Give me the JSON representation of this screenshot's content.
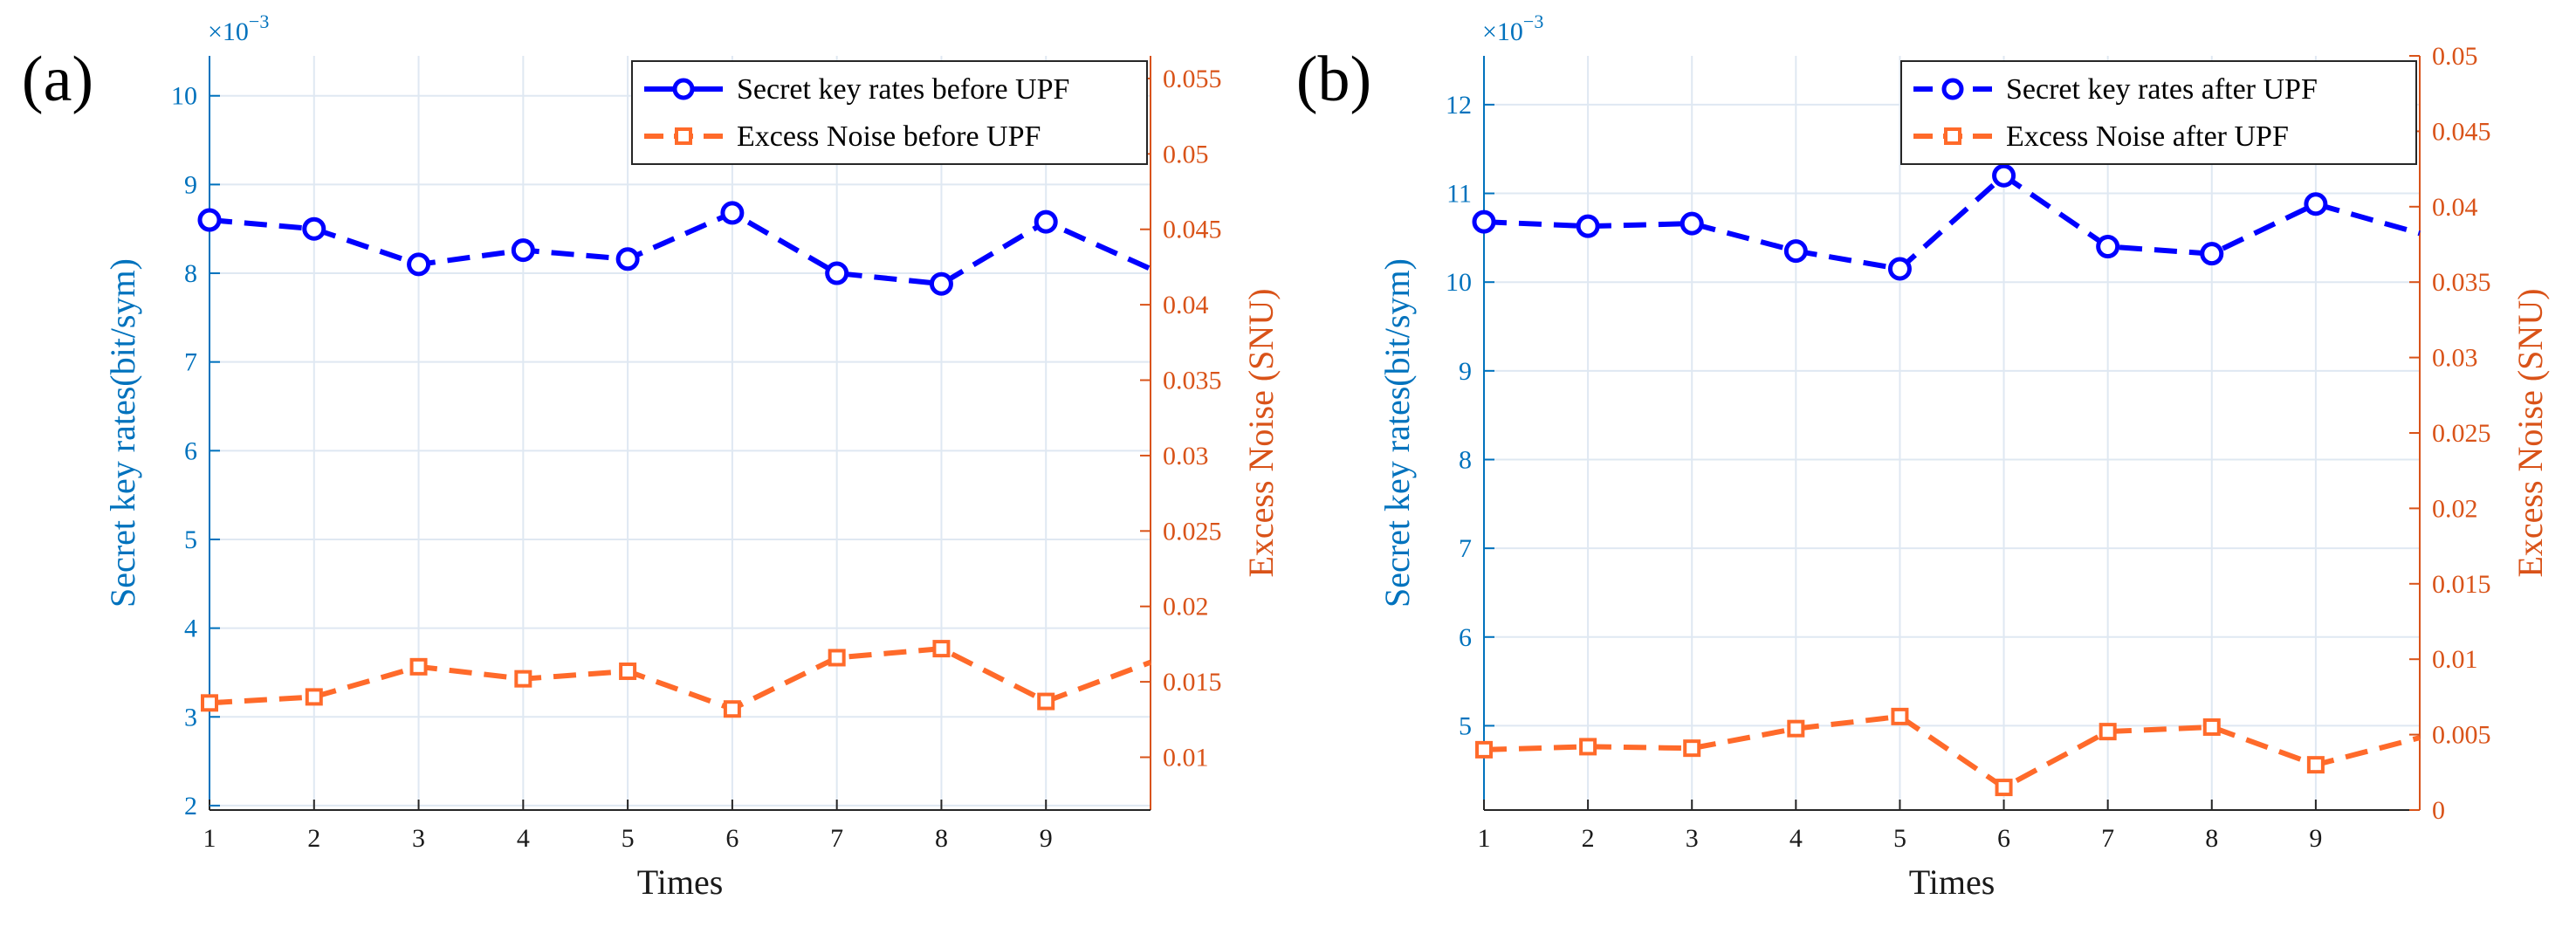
{
  "colors": {
    "left_axis": "#0072BD",
    "right_axis": "#D95319",
    "series_blue": "#0000FF",
    "series_orange": "#FF6A2A",
    "grid": "#DFE8F2",
    "text": "#1A1A1A"
  },
  "chart_data": [
    {
      "type": "line",
      "panel_label": "(a)",
      "xlabel": "Times",
      "ylabel_left": "Secret key rates(bit/sym)",
      "ylabel_right": "Excess Noise (SNU)",
      "left_exponent": "×10",
      "left_exponent_power": "−3",
      "xlim": [
        1,
        10
      ],
      "ylim_left": [
        1.95,
        10.45
      ],
      "ylim_right": [
        0.0065,
        0.0565
      ],
      "xticks": [
        "1",
        "2",
        "3",
        "4",
        "5",
        "6",
        "7",
        "8",
        "9"
      ],
      "yticks_left": [
        "2",
        "3",
        "4",
        "5",
        "6",
        "7",
        "8",
        "9",
        "10"
      ],
      "yticks_right": [
        "0.01",
        "0.015",
        "0.02",
        "0.025",
        "0.03",
        "0.035",
        "0.04",
        "0.045",
        "0.05",
        "0.055"
      ],
      "legend": [
        "Secret key rates before UPF",
        "Excess Noise before UPF"
      ],
      "series": [
        {
          "name": "Secret key rates before UPF",
          "axis": "left",
          "x": [
            1,
            2,
            3,
            4,
            5,
            6,
            7,
            8,
            9,
            10
          ],
          "values": [
            8.6,
            8.5,
            8.1,
            8.26,
            8.16,
            8.68,
            8.0,
            7.88,
            8.58,
            8.05
          ],
          "marker": "circle",
          "line": "dashed"
        },
        {
          "name": "Excess Noise before UPF",
          "axis": "right",
          "x": [
            1,
            2,
            3,
            4,
            5,
            6,
            7,
            8,
            9,
            10
          ],
          "values": [
            0.0136,
            0.014,
            0.016,
            0.0152,
            0.0157,
            0.0132,
            0.0166,
            0.0172,
            0.0137,
            0.0163
          ],
          "marker": "square",
          "line": "dashed"
        }
      ]
    },
    {
      "type": "line",
      "panel_label": "(b)",
      "xlabel": "Times",
      "ylabel_left": "Secret key rates(bit/sym)",
      "ylabel_right": "Excess Noise (SNU)",
      "left_exponent": "×10",
      "left_exponent_power": "−3",
      "xlim": [
        1,
        10
      ],
      "ylim_left": [
        4.05,
        12.55
      ],
      "ylim_right": [
        0,
        0.05
      ],
      "xticks": [
        "1",
        "2",
        "3",
        "4",
        "5",
        "6",
        "7",
        "8",
        "9"
      ],
      "yticks_left": [
        "5",
        "6",
        "7",
        "8",
        "9",
        "10",
        "11",
        "12"
      ],
      "yticks_right": [
        "0",
        "0.005",
        "0.01",
        "0.015",
        "0.02",
        "0.025",
        "0.03",
        "0.035",
        "0.04",
        "0.045",
        "0.05"
      ],
      "legend": [
        "Secret key rates after UPF",
        "Excess Noise after UPF"
      ],
      "series": [
        {
          "name": "Secret key rates after UPF",
          "axis": "left",
          "x": [
            1,
            2,
            3,
            4,
            5,
            6,
            7,
            8,
            9,
            10
          ],
          "values": [
            10.68,
            10.63,
            10.66,
            10.35,
            10.15,
            11.2,
            10.4,
            10.32,
            10.88,
            10.55
          ],
          "marker": "circle",
          "line": "dashed"
        },
        {
          "name": "Excess Noise after UPF",
          "axis": "right",
          "x": [
            1,
            2,
            3,
            4,
            5,
            6,
            7,
            8,
            9,
            10
          ],
          "values": [
            0.004,
            0.0042,
            0.0041,
            0.0054,
            0.0062,
            0.0015,
            0.0052,
            0.0055,
            0.003,
            0.0048
          ],
          "marker": "square",
          "line": "dashed"
        }
      ]
    }
  ]
}
